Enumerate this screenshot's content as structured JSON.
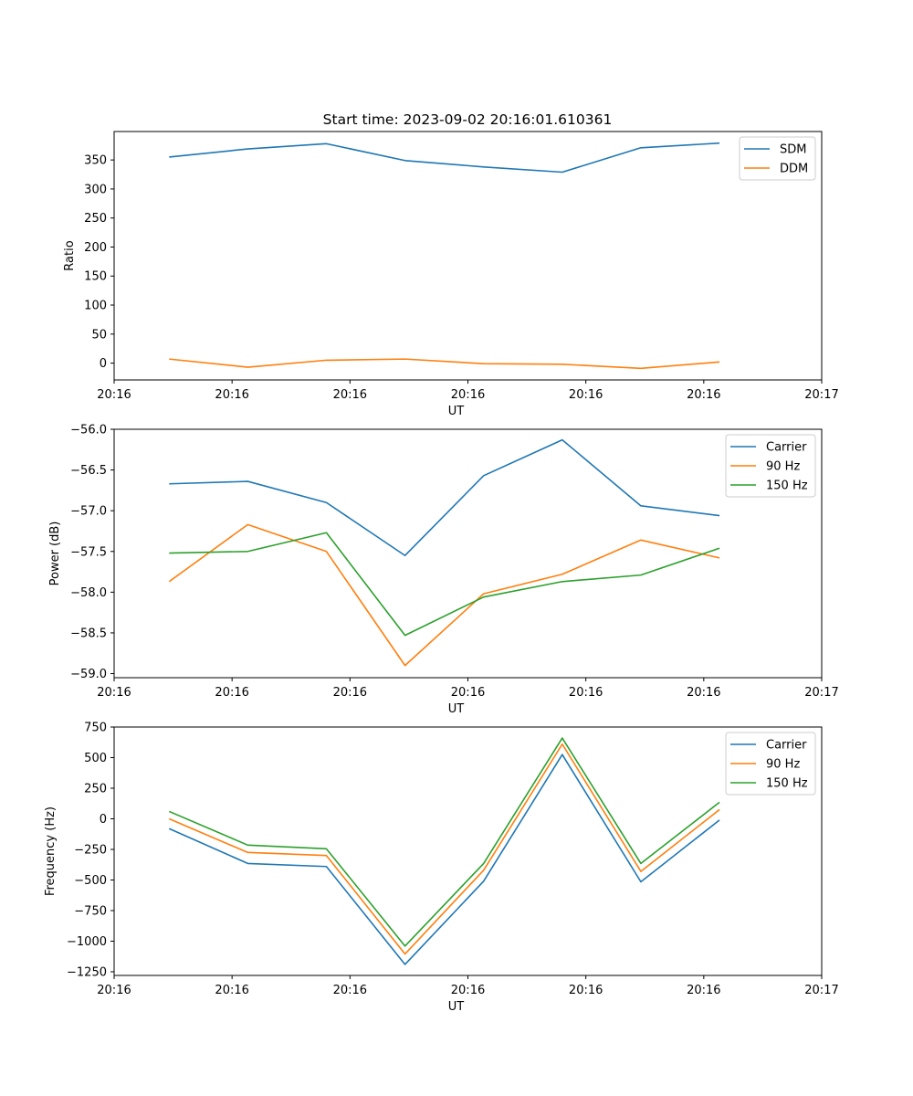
{
  "title": "Start time: 2023-09-02 20:16:01.610361",
  "chart_data": [
    {
      "type": "line",
      "title": "Start time: 2023-09-02 20:16:01.610361",
      "xlabel": "UT",
      "ylabel": "Ratio",
      "xlim": [
        0,
        9
      ],
      "ylim": [
        -29,
        399
      ],
      "x_ticks": [
        0,
        1.5,
        3,
        4.5,
        6,
        7.5,
        9
      ],
      "x_tick_labels": [
        "20:16",
        "20:16",
        "20:16",
        "20:16",
        "20:16",
        "20:16",
        "20:17"
      ],
      "y_ticks": [
        0,
        50,
        100,
        150,
        200,
        250,
        300,
        350
      ],
      "y_tick_labels": [
        "0",
        "50",
        "100",
        "150",
        "200",
        "250",
        "300",
        "350"
      ],
      "x": [
        0.7,
        1.7,
        2.7,
        3.7,
        4.7,
        5.7,
        6.7,
        7.7
      ],
      "series": [
        {
          "name": "SDM",
          "color": "#1f77b4",
          "values": [
            355,
            369,
            378,
            349,
            338,
            329,
            371,
            379
          ]
        },
        {
          "name": "DDM",
          "color": "#ff7f0e",
          "values": [
            7,
            -7,
            5,
            7,
            -1,
            -2,
            -9,
            2
          ]
        }
      ],
      "legend": "top-right"
    },
    {
      "type": "line",
      "title": "",
      "xlabel": "UT",
      "ylabel": "Power (dB)",
      "xlim": [
        0,
        9
      ],
      "ylim": [
        -59.05,
        -56.0
      ],
      "x_ticks": [
        0,
        1.5,
        3,
        4.5,
        6,
        7.5,
        9
      ],
      "x_tick_labels": [
        "20:16",
        "20:16",
        "20:16",
        "20:16",
        "20:16",
        "20:16",
        "20:17"
      ],
      "y_ticks": [
        -59.0,
        -58.5,
        -58.0,
        -57.5,
        -57.0,
        -56.5,
        -56.0
      ],
      "y_tick_labels": [
        "−59.0",
        "−58.5",
        "−58.0",
        "−57.5",
        "−57.0",
        "−56.5",
        "−56.0"
      ],
      "x": [
        0.7,
        1.7,
        2.7,
        3.7,
        4.7,
        5.7,
        6.7,
        7.7
      ],
      "series": [
        {
          "name": "Carrier",
          "color": "#1f77b4",
          "values": [
            -56.67,
            -56.64,
            -56.9,
            -57.55,
            -56.57,
            -56.13,
            -56.94,
            -57.06
          ]
        },
        {
          "name": "90 Hz",
          "color": "#ff7f0e",
          "values": [
            -57.87,
            -57.17,
            -57.5,
            -58.9,
            -58.02,
            -57.78,
            -57.36,
            -57.58
          ]
        },
        {
          "name": "150 Hz",
          "color": "#2ca02c",
          "values": [
            -57.52,
            -57.5,
            -57.27,
            -58.53,
            -58.06,
            -57.87,
            -57.79,
            -57.46
          ]
        }
      ],
      "legend": "top-right"
    },
    {
      "type": "line",
      "title": "",
      "xlabel": "UT",
      "ylabel": "Frequency (Hz)",
      "xlim": [
        0,
        9
      ],
      "ylim": [
        -1280,
        750
      ],
      "x_ticks": [
        0,
        1.5,
        3,
        4.5,
        6,
        7.5,
        9
      ],
      "x_tick_labels": [
        "20:16",
        "20:16",
        "20:16",
        "20:16",
        "20:16",
        "20:16",
        "20:17"
      ],
      "y_ticks": [
        -1250,
        -1000,
        -750,
        -500,
        -250,
        0,
        250,
        500,
        750
      ],
      "y_tick_labels": [
        "−1250",
        "−1000",
        "−750",
        "−500",
        "−250",
        "0",
        "250",
        "500",
        "750"
      ],
      "x": [
        0.7,
        1.7,
        2.7,
        3.7,
        4.7,
        5.7,
        6.7,
        7.7
      ],
      "series": [
        {
          "name": "Carrier",
          "color": "#1f77b4",
          "values": [
            -80,
            -365,
            -390,
            -1190,
            -510,
            525,
            -515,
            -10
          ]
        },
        {
          "name": "90 Hz",
          "color": "#ff7f0e",
          "values": [
            0,
            -275,
            -300,
            -1105,
            -420,
            610,
            -430,
            75
          ]
        },
        {
          "name": "150 Hz",
          "color": "#2ca02c",
          "values": [
            60,
            -215,
            -245,
            -1040,
            -365,
            660,
            -365,
            135
          ]
        }
      ],
      "legend": "top-right"
    }
  ]
}
